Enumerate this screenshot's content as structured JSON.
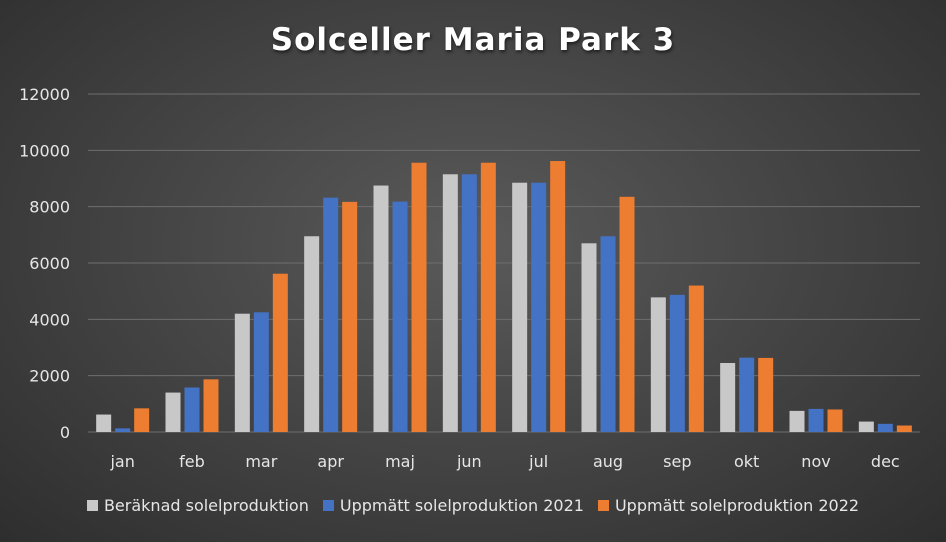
{
  "chart_data": {
    "type": "bar",
    "title": "Solceller Maria Park 3",
    "categories": [
      "jan",
      "feb",
      "mar",
      "apr",
      "maj",
      "jun",
      "jul",
      "aug",
      "sep",
      "okt",
      "nov",
      "dec"
    ],
    "ylim": [
      0,
      12000
    ],
    "yticks": [
      0,
      2000,
      4000,
      6000,
      8000,
      10000,
      12000
    ],
    "grid": true,
    "legend_position": "bottom",
    "series": [
      {
        "name": "Beräknad solelproduktion",
        "color": "#c8c8c8",
        "values": [
          620,
          1400,
          4200,
          6950,
          8750,
          9150,
          8850,
          6700,
          4780,
          2450,
          750,
          370
        ]
      },
      {
        "name": "Uppmätt solelproduktion 2021",
        "color": "#4472c4",
        "values": [
          130,
          1580,
          4250,
          8320,
          8180,
          9150,
          8850,
          6950,
          4870,
          2640,
          820,
          290
        ]
      },
      {
        "name": "Uppmätt solelproduktion 2022",
        "color": "#ed7d31",
        "values": [
          840,
          1870,
          5620,
          8170,
          9560,
          9560,
          9620,
          8350,
          5200,
          2630,
          800,
          230
        ]
      }
    ]
  }
}
